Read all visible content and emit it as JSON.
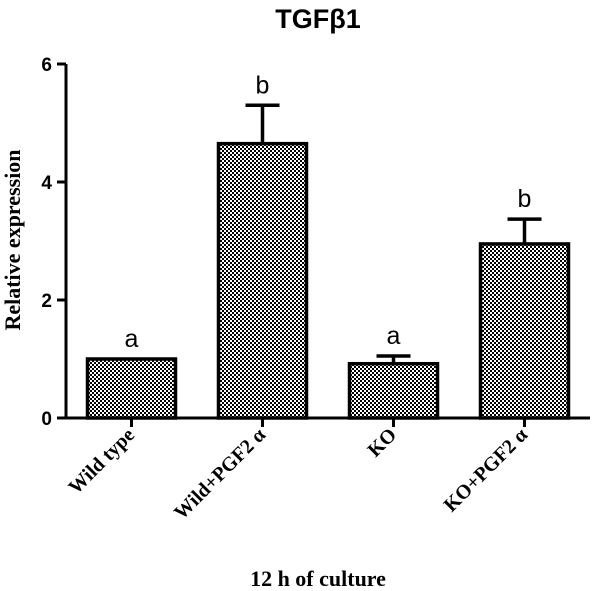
{
  "chart_data": {
    "type": "bar",
    "title": "TGFβ1",
    "ylabel": "Relative expression",
    "xlabel": "12 h of culture",
    "categories": [
      "Wild type",
      "Wild+PGF2 α",
      "KO",
      "KO+PGF2 α"
    ],
    "values": [
      1.0,
      4.65,
      0.92,
      2.95
    ],
    "errors": [
      0.0,
      0.65,
      0.13,
      0.42
    ],
    "significance": [
      "a",
      "b",
      "a",
      "b"
    ],
    "ylim": [
      0,
      6
    ],
    "yticks": [
      "0",
      "2",
      "4",
      "6"
    ],
    "grid": false,
    "bar_pattern": "checkerboard",
    "colors": {
      "axis": "#000000",
      "bar_dark": "#000000",
      "bar_light": "#ffffff"
    }
  }
}
